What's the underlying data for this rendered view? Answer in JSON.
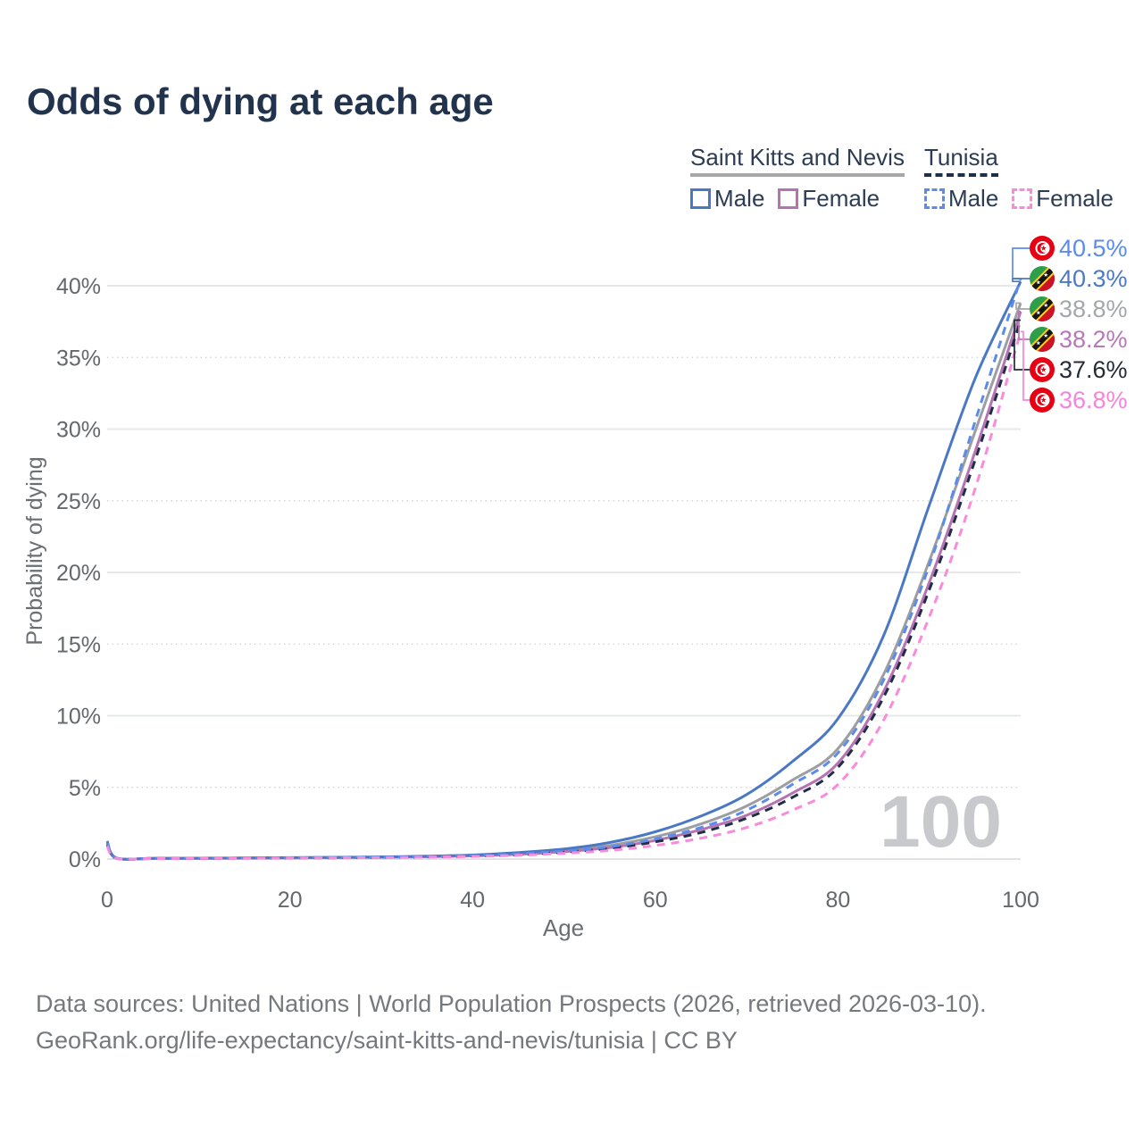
{
  "title": "Odds of dying at each age",
  "watermark": "100",
  "legend": {
    "groups": [
      {
        "name": "Saint Kitts and Nevis",
        "underline_style": "solid",
        "underline_color": "#a7a7a7",
        "items": [
          {
            "label": "Male",
            "color": "#4a78c4",
            "dash": false
          },
          {
            "label": "Female",
            "color": "#b573b3",
            "dash": false
          }
        ]
      },
      {
        "name": "Tunisia",
        "underline_style": "dashed",
        "underline_color": "#1d3049",
        "items": [
          {
            "label": "Male",
            "color": "#5b8ceb",
            "dash": true
          },
          {
            "label": "Female",
            "color": "#f98bdb",
            "dash": true
          }
        ]
      }
    ]
  },
  "chart_data": {
    "type": "line",
    "title": "Odds of dying at each age",
    "xlabel": "Age",
    "ylabel": "Probability of dying",
    "x_ticks": [
      0,
      20,
      40,
      60,
      80,
      100
    ],
    "y_ticks": [
      0,
      5,
      10,
      15,
      20,
      25,
      30,
      35,
      40
    ],
    "xlim": [
      0,
      100
    ],
    "ylim": [
      0,
      43
    ],
    "grid": "horizontal, solid at multiples of 10%, dotted at 5% steps",
    "legend_position": "top-right",
    "ages": [
      0,
      1,
      5,
      10,
      15,
      20,
      25,
      30,
      35,
      40,
      45,
      50,
      55,
      60,
      65,
      70,
      75,
      80,
      85,
      90,
      95,
      100
    ],
    "series": [
      {
        "name": "Saint Kitts and Nevis Both sexes",
        "country": "Saint Kitts and Nevis",
        "sex": "Both sexes",
        "color": "#9c9ea1",
        "dash": false,
        "end_label": "38.8%",
        "values": [
          1.15,
          0.07,
          0.05,
          0.05,
          0.07,
          0.09,
          0.11,
          0.14,
          0.18,
          0.25,
          0.38,
          0.6,
          0.95,
          1.55,
          2.45,
          3.7,
          5.5,
          7.7,
          12.9,
          20.8,
          29.8,
          38.8
        ]
      },
      {
        "name": "Saint Kitts and Nevis Female",
        "country": "Saint Kitts and Nevis",
        "sex": "Female",
        "color": "#b573b3",
        "dash": false,
        "end_label": "38.2%",
        "values": [
          1.05,
          0.06,
          0.04,
          0.05,
          0.06,
          0.08,
          0.1,
          0.12,
          0.16,
          0.22,
          0.33,
          0.52,
          0.8,
          1.3,
          2.05,
          3.05,
          4.6,
          6.7,
          11.7,
          19.3,
          28.4,
          38.2
        ]
      },
      {
        "name": "Tunisia Both sexes",
        "country": "Tunisia",
        "sex": "Both sexes",
        "color": "#1f2d45",
        "dash": true,
        "end_label": "37.6%",
        "values": [
          1.0,
          0.05,
          0.04,
          0.04,
          0.06,
          0.08,
          0.09,
          0.11,
          0.15,
          0.21,
          0.31,
          0.48,
          0.75,
          1.2,
          1.85,
          2.85,
          4.3,
          6.4,
          11.3,
          18.8,
          27.8,
          37.6
        ]
      },
      {
        "name": "Saint Kitts and Nevis Male",
        "country": "Saint Kitts and Nevis",
        "sex": "Male",
        "color": "#4a78c4",
        "dash": false,
        "end_label": "40.3%",
        "values": [
          1.25,
          0.08,
          0.05,
          0.06,
          0.08,
          0.1,
          0.12,
          0.15,
          0.2,
          0.28,
          0.45,
          0.7,
          1.15,
          1.9,
          3.0,
          4.5,
          6.8,
          9.8,
          15.6,
          24.7,
          33.5,
          40.3
        ]
      },
      {
        "name": "Tunisia Male",
        "country": "Tunisia",
        "sex": "Male",
        "color": "#5b8ceb",
        "dash": true,
        "end_label": "40.5%",
        "values": [
          1.1,
          0.06,
          0.04,
          0.05,
          0.07,
          0.09,
          0.11,
          0.13,
          0.17,
          0.24,
          0.36,
          0.55,
          0.85,
          1.4,
          2.2,
          3.4,
          5.2,
          7.4,
          12.5,
          20.5,
          30.5,
          40.5
        ]
      },
      {
        "name": "Tunisia Female",
        "country": "Tunisia",
        "sex": "Female",
        "color": "#f98bdb",
        "dash": true,
        "end_label": "36.8%",
        "values": [
          0.9,
          0.05,
          0.03,
          0.04,
          0.05,
          0.07,
          0.08,
          0.1,
          0.13,
          0.18,
          0.26,
          0.4,
          0.6,
          0.95,
          1.45,
          2.2,
          3.4,
          5.2,
          9.7,
          16.9,
          25.8,
          36.8
        ]
      }
    ]
  },
  "callouts": [
    {
      "series": "Tunisia Male",
      "value": "40.5%",
      "color": "#5b8ceb",
      "flag": "tunisia"
    },
    {
      "series": "Saint Kitts and Nevis Male",
      "value": "40.3%",
      "color": "#4c79c5",
      "flag": "saint-kitts-and-nevis"
    },
    {
      "series": "Saint Kitts and Nevis Both sexes",
      "value": "38.8%",
      "color": "#a3a7ac",
      "flag": "saint-kitts-and-nevis"
    },
    {
      "series": "Saint Kitts and Nevis Female",
      "value": "38.2%",
      "color": "#b678b6",
      "flag": "saint-kitts-and-nevis"
    },
    {
      "series": "Tunisia Both sexes",
      "value": "37.6%",
      "color": "#242b38",
      "flag": "tunisia"
    },
    {
      "series": "Tunisia Female",
      "value": "36.8%",
      "color": "#f884da",
      "flag": "tunisia"
    }
  ],
  "footer": {
    "line1": "Data sources: United Nations | World Population Prospects (2026, retrieved 2026-03-10).",
    "line2": "GeoRank.org/life-expectancy/saint-kitts-and-nevis/tunisia | CC BY"
  }
}
